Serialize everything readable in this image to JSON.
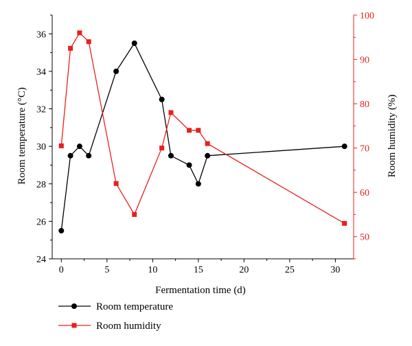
{
  "chart_data": {
    "type": "line",
    "xlabel": "Fermentation time (d)",
    "y1label": "Room temperature (°C)",
    "y2label": "Room humidity (%)",
    "xlim": [
      -1,
      32
    ],
    "y1lim": [
      24,
      37
    ],
    "y2lim": [
      45,
      100
    ],
    "xticks": [
      0,
      5,
      10,
      15,
      20,
      25,
      30
    ],
    "y1ticks": [
      24,
      26,
      28,
      30,
      32,
      34,
      36
    ],
    "y2ticks": [
      50,
      60,
      70,
      80,
      90,
      100
    ],
    "legend_position": "bottom-left",
    "grid": false,
    "colors": {
      "temperature": "#000000",
      "humidity": "#e8201c",
      "right_axis": "#e8201c",
      "left_axis": "#000000"
    },
    "series": [
      {
        "name": "Room temperature",
        "axis": "left",
        "marker": "circle",
        "x": [
          0,
          1,
          2,
          3,
          6,
          8,
          11,
          12,
          14,
          15,
          16,
          31
        ],
        "values": [
          25.5,
          29.5,
          30,
          29.5,
          34,
          35.5,
          32.5,
          29.5,
          29,
          28,
          29.5,
          30
        ]
      },
      {
        "name": "Room humidity",
        "axis": "right",
        "marker": "square",
        "x": [
          0,
          1,
          2,
          3,
          6,
          8,
          11,
          12,
          14,
          15,
          16,
          31
        ],
        "values": [
          70.5,
          92.5,
          96,
          94,
          62,
          55,
          70,
          78,
          74,
          74,
          71,
          53
        ]
      }
    ]
  }
}
